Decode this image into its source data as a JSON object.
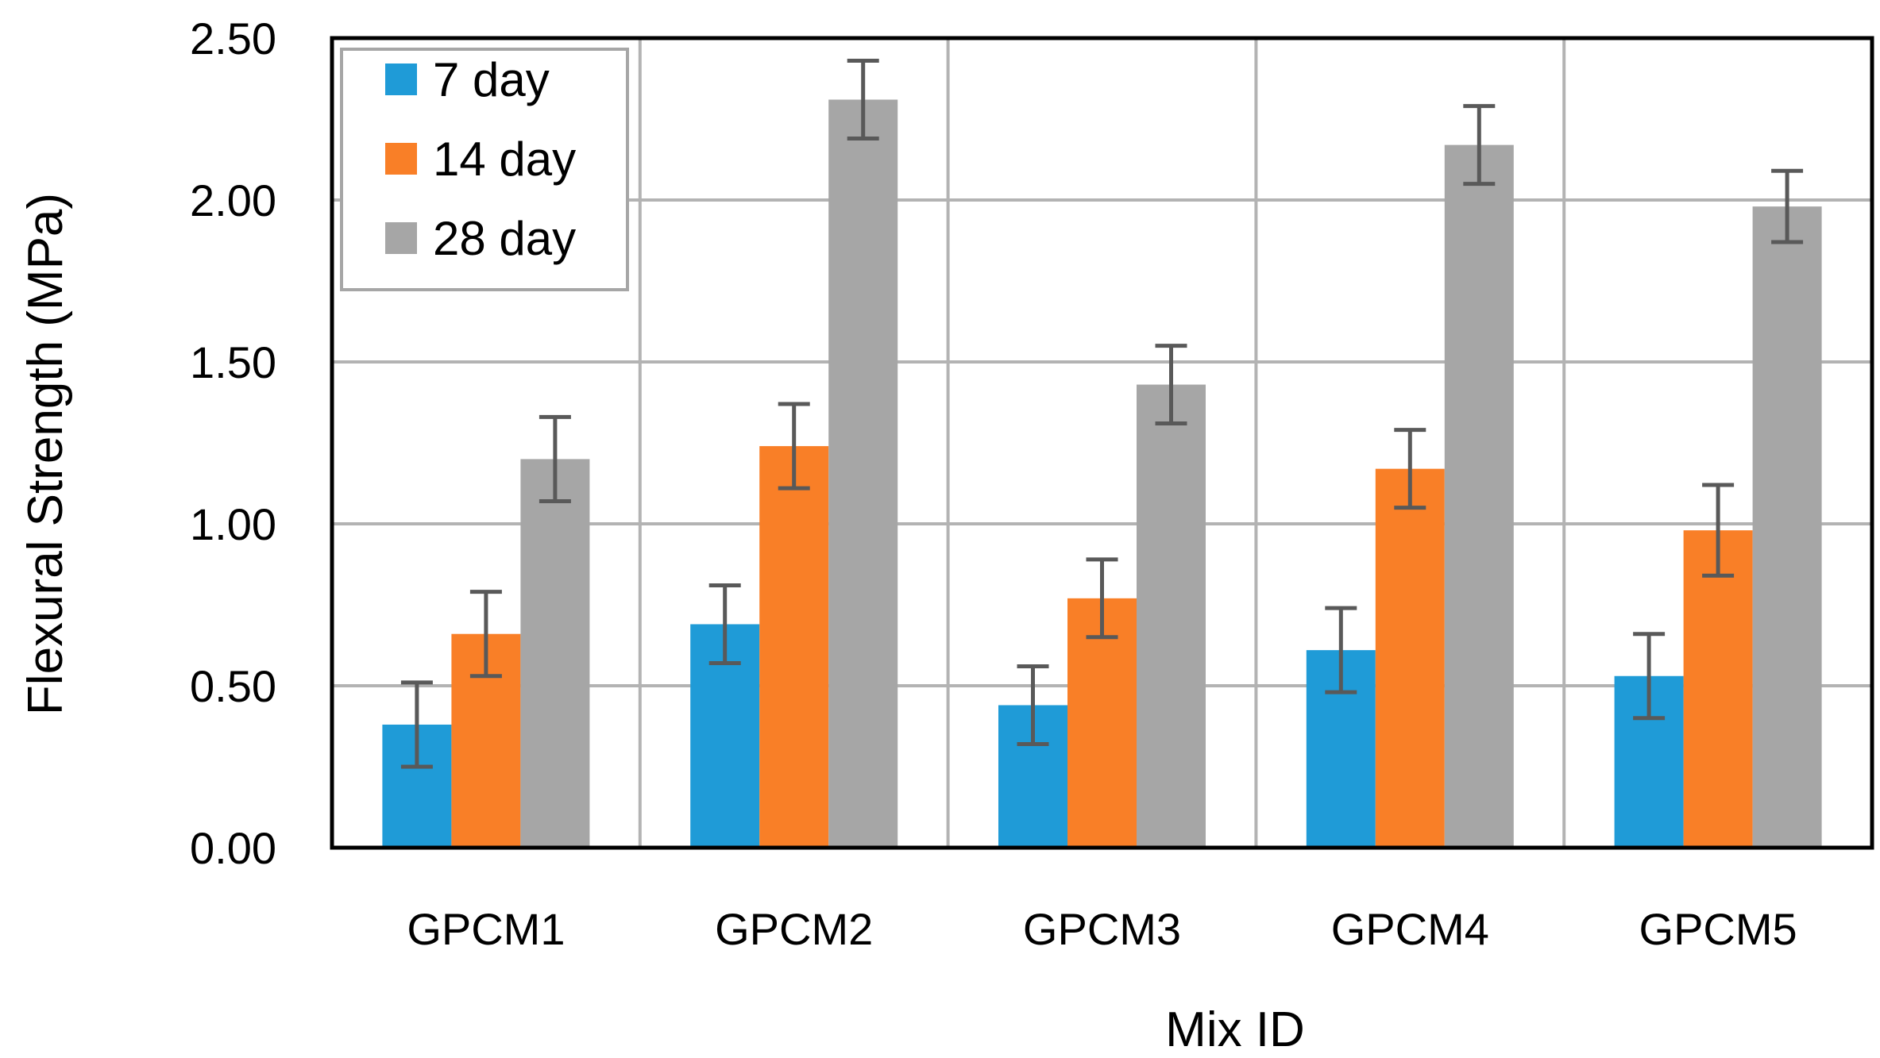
{
  "chart_data": {
    "type": "bar",
    "title": "",
    "xlabel": "Mix ID",
    "ylabel": "Flexural Strength (MPa)",
    "ylim": [
      0,
      2.5
    ],
    "yticks": [
      "0.00",
      "0.50",
      "1.00",
      "1.50",
      "2.00",
      "2.50"
    ],
    "grid": true,
    "legend_position": "top-left",
    "categories": [
      "GPCM1",
      "GPCM2",
      "GPCM3",
      "GPCM4",
      "GPCM5"
    ],
    "series": [
      {
        "name": "7 day",
        "color": "#1f9bd7",
        "values": [
          0.38,
          0.69,
          0.44,
          0.61,
          0.53
        ],
        "error": [
          0.13,
          0.12,
          0.12,
          0.13,
          0.13
        ]
      },
      {
        "name": "14 day",
        "color": "#f97f27",
        "values": [
          0.66,
          1.24,
          0.77,
          1.17,
          0.98
        ],
        "error": [
          0.13,
          0.13,
          0.12,
          0.12,
          0.14
        ]
      },
      {
        "name": "28 day",
        "color": "#a6a6a6",
        "values": [
          1.2,
          2.31,
          1.43,
          2.17,
          1.98
        ],
        "error": [
          0.13,
          0.12,
          0.12,
          0.12,
          0.11
        ]
      }
    ]
  }
}
